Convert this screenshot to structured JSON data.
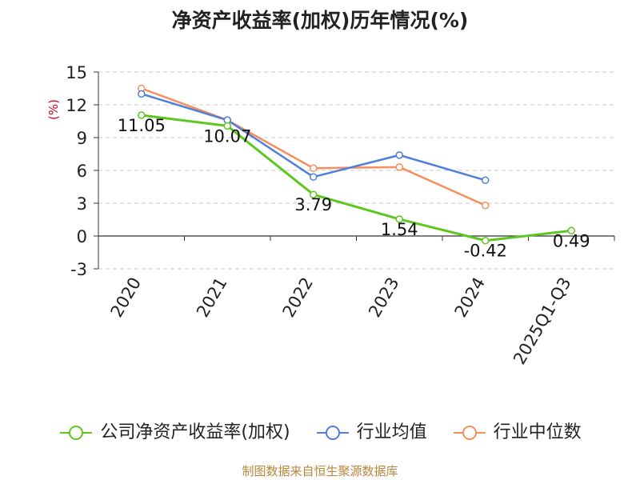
{
  "chart_data": {
    "type": "line",
    "title": "净资产收益率(加权)历年情况(%)",
    "ylabel": "(%)",
    "xlabel": "",
    "categories": [
      "2020",
      "2021",
      "2022",
      "2023",
      "2024",
      "2025Q1-Q3"
    ],
    "ylim": [
      -3,
      15
    ],
    "yticks": [
      -3,
      0,
      3,
      6,
      9,
      12,
      15
    ],
    "grid": true,
    "legend_position": "bottom",
    "series": [
      {
        "name": "公司净资产收益率(加权)",
        "color": "#5cc71e",
        "values": [
          11.05,
          10.07,
          3.79,
          1.54,
          -0.42,
          0.49
        ],
        "labels": [
          "11.05",
          "10.07",
          "3.79",
          "1.54",
          "-0.42",
          "0.49"
        ]
      },
      {
        "name": "行业均值",
        "color": "#4f7fd8",
        "values": [
          13.0,
          10.6,
          5.4,
          7.4,
          5.1,
          null
        ]
      },
      {
        "name": "行业中位数",
        "color": "#f58f5c",
        "values": [
          13.5,
          10.6,
          6.2,
          6.3,
          2.8,
          null
        ]
      }
    ]
  },
  "source": "制图数据来自恒生聚源数据库"
}
